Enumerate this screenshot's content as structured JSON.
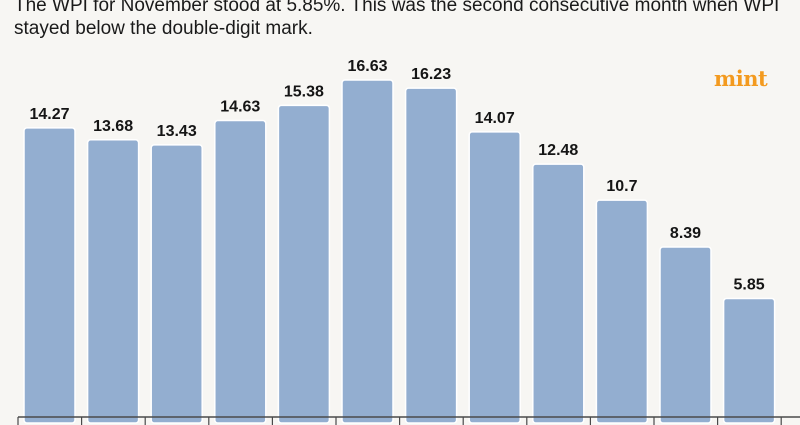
{
  "header": {
    "subtitle": "The WPI for November stood at 5.85%. This was the second consecutive month when WPI stayed below the double-digit mark."
  },
  "brand": {
    "logo_text": "mint",
    "color": "#f39a1f"
  },
  "colors": {
    "bar": "#93aed0",
    "background": "#f7f6f3",
    "label": "#151515"
  },
  "chart_data": {
    "type": "bar",
    "title": "",
    "xlabel": "",
    "ylabel": "",
    "categories": [],
    "values": [
      14.27,
      13.68,
      13.43,
      14.63,
      15.38,
      16.63,
      16.23,
      14.07,
      12.48,
      10.7,
      8.39,
      5.85
    ],
    "labels": [
      "14.27",
      "13.68",
      "13.43",
      "14.63",
      "15.38",
      "16.63",
      "16.23",
      "14.07",
      "12.48",
      "10.7",
      "8.39",
      "5.85"
    ],
    "ylim": [
      0,
      16.63
    ],
    "grid": false,
    "legend": "none"
  }
}
